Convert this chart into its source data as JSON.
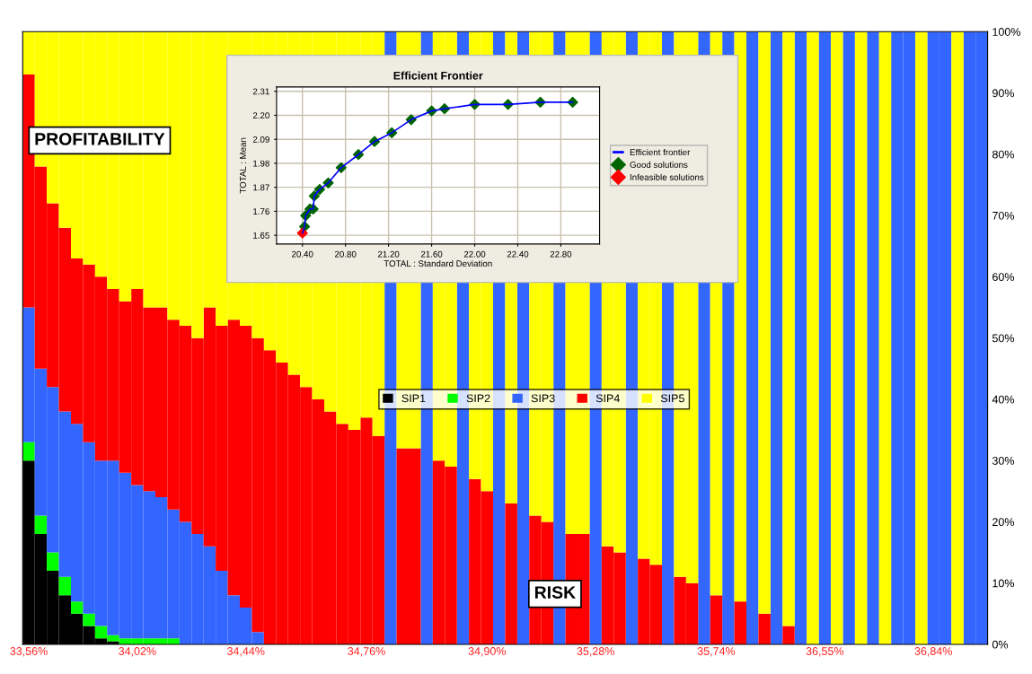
{
  "chart_data": [
    {
      "type": "bar",
      "stacked": true,
      "categories": [
        "33,56%",
        null,
        null,
        null,
        null,
        null,
        null,
        null,
        null,
        "34,02%",
        null,
        null,
        null,
        null,
        null,
        null,
        null,
        null,
        "34,44%",
        null,
        null,
        null,
        null,
        null,
        null,
        null,
        null,
        null,
        "34,76%",
        null,
        null,
        null,
        null,
        null,
        null,
        null,
        null,
        null,
        "34,90%",
        null,
        null,
        null,
        null,
        null,
        null,
        null,
        null,
        "35,28%",
        null,
        null,
        null,
        null,
        null,
        null,
        null,
        null,
        null,
        "35,74%",
        null,
        null,
        null,
        null,
        null,
        null,
        null,
        null,
        "36,55%",
        null,
        null,
        null,
        null,
        null,
        null,
        null,
        null,
        "36,84%",
        null,
        null,
        null,
        null
      ],
      "series": [
        {
          "name": "SIP1",
          "color": "#000000",
          "values": [
            30,
            18,
            12,
            8,
            5,
            3,
            1,
            0.5,
            0,
            0,
            0,
            0,
            0,
            0,
            0,
            0,
            0,
            0,
            0,
            0,
            0,
            0,
            0,
            0,
            0,
            0,
            0,
            0,
            0,
            0,
            0,
            0,
            0,
            0,
            0,
            0,
            0,
            0,
            0,
            0,
            0,
            0,
            0,
            0,
            0,
            0,
            0,
            0,
            0,
            0,
            0,
            0,
            0,
            0,
            0,
            0,
            0,
            0,
            0,
            0,
            0,
            0,
            0,
            0,
            0,
            0,
            0,
            0,
            0,
            0,
            0,
            0,
            0,
            0,
            0,
            0,
            0,
            0,
            0,
            0
          ]
        },
        {
          "name": "SIP2",
          "color": "#00ff00",
          "values": [
            3,
            3,
            3,
            3,
            2,
            2,
            2,
            1,
            1,
            1,
            1,
            1,
            1,
            0,
            0,
            0,
            0,
            0,
            0,
            0,
            0,
            0,
            0,
            0,
            0,
            0,
            0,
            0,
            0,
            0,
            0,
            0,
            0,
            0,
            0,
            0,
            0,
            0,
            0,
            0,
            0,
            0,
            0,
            0,
            0,
            0,
            0,
            0,
            0,
            0,
            0,
            0,
            0,
            0,
            0,
            0,
            0,
            0,
            0,
            0,
            0,
            0,
            0,
            0,
            0,
            0,
            0,
            0,
            0,
            0,
            0,
            0,
            0,
            0,
            0,
            0,
            0,
            0,
            0,
            0
          ]
        },
        {
          "name": "SIP3",
          "color": "#3366ff",
          "values": [
            22,
            24,
            27,
            27,
            29,
            28,
            27,
            28.5,
            27,
            25,
            24,
            23,
            21,
            20,
            18,
            16,
            12,
            8,
            6,
            2,
            0,
            0,
            0,
            0,
            0,
            0,
            0,
            0,
            0,
            0,
            100,
            0,
            0,
            100,
            0,
            0,
            100,
            0,
            0,
            100,
            0,
            100,
            0,
            0,
            100,
            0,
            0,
            100,
            0,
            0,
            100,
            0,
            0,
            100,
            0,
            0,
            100,
            0,
            100,
            0,
            100,
            0,
            100,
            0,
            100,
            0,
            100,
            0,
            100,
            0,
            100,
            0,
            100,
            100,
            0,
            100,
            100,
            0,
            100,
            100
          ]
        },
        {
          "name": "SIP4",
          "color": "#ff0000",
          "values": [
            38,
            33,
            30,
            30,
            27,
            29,
            30,
            28,
            28,
            32,
            30,
            31,
            31,
            32,
            32,
            39,
            40,
            45,
            46,
            48,
            48,
            46,
            44,
            42,
            40,
            38,
            36,
            35,
            37,
            34,
            0,
            32,
            32,
            0,
            30,
            29,
            0,
            27,
            25,
            0,
            23,
            0,
            21,
            20,
            0,
            18,
            18,
            0,
            16,
            15,
            0,
            14,
            13,
            0,
            11,
            10,
            0,
            8,
            0,
            7,
            0,
            5,
            0,
            3,
            0,
            0,
            0,
            0,
            0,
            0,
            0,
            0,
            0,
            0,
            0,
            0,
            0,
            0,
            0,
            0
          ]
        },
        {
          "name": "SIP5",
          "color": "#ffff00",
          "values": [
            7,
            22,
            28,
            32,
            37,
            38,
            40,
            42,
            44,
            42,
            45,
            45,
            47,
            48,
            50,
            45,
            48,
            47,
            48,
            50,
            52,
            54,
            56,
            58,
            60,
            62,
            64,
            65,
            63,
            66,
            0,
            68,
            68,
            0,
            70,
            71,
            0,
            73,
            75,
            0,
            77,
            0,
            79,
            80,
            0,
            82,
            82,
            0,
            84,
            85,
            0,
            86,
            87,
            0,
            89,
            90,
            0,
            92,
            0,
            93,
            0,
            95,
            0,
            97,
            0,
            100,
            0,
            100,
            0,
            100,
            0,
            100,
            0,
            0,
            100,
            0,
            0,
            100,
            0,
            0
          ]
        }
      ],
      "ylim": [
        0,
        100
      ],
      "yticks": [
        {
          "value": 0,
          "label": "0%"
        },
        {
          "value": 10,
          "label": "10%"
        },
        {
          "value": 20,
          "label": "20%"
        },
        {
          "value": 30,
          "label": "30%"
        },
        {
          "value": 40,
          "label": "40%"
        },
        {
          "value": 50,
          "label": "50%"
        },
        {
          "value": 60,
          "label": "60%"
        },
        {
          "value": 70,
          "label": "70%"
        },
        {
          "value": 80,
          "label": "80%"
        },
        {
          "value": 90,
          "label": "90%"
        },
        {
          "value": 100,
          "label": "100%"
        }
      ],
      "legend": "center",
      "annotations": [
        "PROFITABILITY",
        "RISK"
      ]
    },
    {
      "type": "scatter",
      "title": "Efficient Frontier",
      "xlabel": "TOTAL : Standard Deviation",
      "ylabel": "TOTAL : Mean",
      "series": [
        {
          "name": "Efficient frontier",
          "type": "line",
          "marker": "none",
          "color": "#0000ff",
          "x": [
            20.4,
            20.42,
            20.43,
            20.47,
            20.5,
            20.51,
            20.56,
            20.64,
            20.76,
            20.92,
            21.07,
            21.23,
            21.41,
            21.6,
            21.72,
            22.0,
            22.31,
            22.61,
            22.91
          ],
          "values": [
            1.66,
            1.69,
            1.74,
            1.77,
            1.77,
            1.83,
            1.86,
            1.89,
            1.96,
            2.02,
            2.08,
            2.12,
            2.18,
            2.22,
            2.23,
            2.25,
            2.25,
            2.26,
            2.26
          ]
        },
        {
          "name": "Good solutions",
          "type": "scatter",
          "color": "#006400",
          "x": [
            20.42,
            20.43,
            20.47,
            20.5,
            20.51,
            20.56,
            20.64,
            20.76,
            20.92,
            21.07,
            21.23,
            21.41,
            21.6,
            21.72,
            22.0,
            22.31,
            22.61,
            22.91
          ],
          "values": [
            1.69,
            1.74,
            1.77,
            1.77,
            1.83,
            1.86,
            1.89,
            1.96,
            2.02,
            2.08,
            2.12,
            2.18,
            2.22,
            2.23,
            2.25,
            2.25,
            2.26,
            2.26
          ]
        },
        {
          "name": "Infeasible solutions",
          "type": "scatter",
          "color": "#ff0000",
          "x": [
            20.4
          ],
          "values": [
            1.66
          ]
        }
      ],
      "marker": "diamond",
      "xlim": [
        20.16,
        23.16
      ],
      "xticks": [
        {
          "value": 20.4,
          "label": "20.40"
        },
        {
          "value": 20.8,
          "label": "20.80"
        },
        {
          "value": 21.2,
          "label": "21.20"
        },
        {
          "value": 21.6,
          "label": "21.60"
        },
        {
          "value": 22.0,
          "label": "22.00"
        },
        {
          "value": 22.4,
          "label": "22.40"
        },
        {
          "value": 22.8,
          "label": "22.80"
        }
      ],
      "ylim": [
        1.61,
        2.33
      ],
      "yticks": [
        {
          "value": 1.65,
          "label": "1.65"
        },
        {
          "value": 1.76,
          "label": "1.76"
        },
        {
          "value": 1.87,
          "label": "1.87"
        },
        {
          "value": 1.98,
          "label": "1.98"
        },
        {
          "value": 2.09,
          "label": "2.09"
        },
        {
          "value": 2.2,
          "label": "2.20"
        },
        {
          "value": 2.31,
          "label": "2.31"
        }
      ],
      "grid": true,
      "legend": "right"
    }
  ]
}
